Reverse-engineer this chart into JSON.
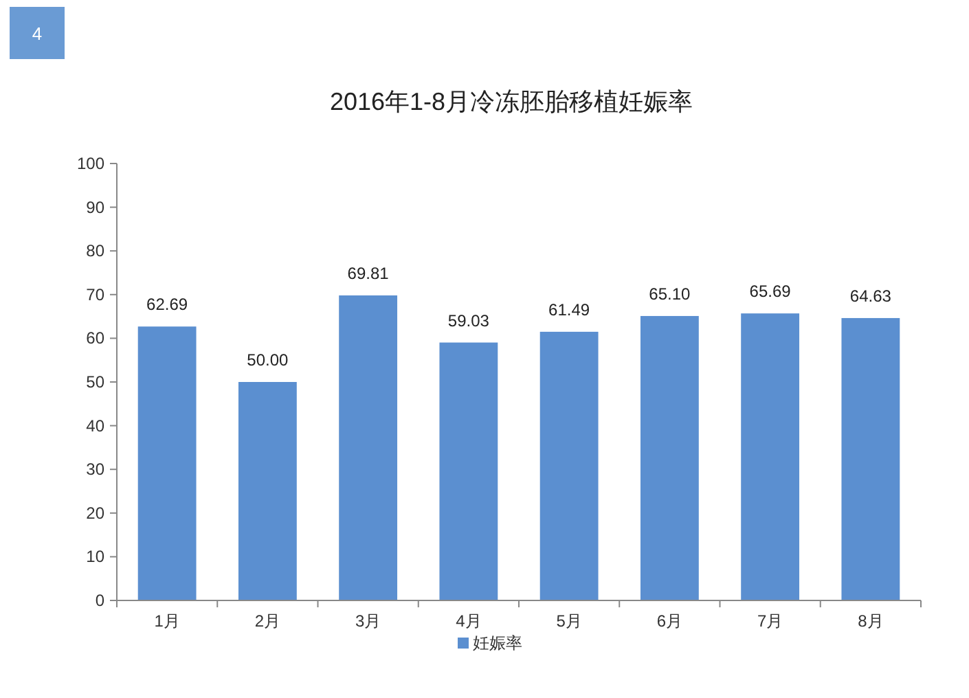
{
  "chart_data": {
    "type": "bar",
    "title": "2016年1-8月冷冻胚胎移植妊娠率",
    "categories": [
      "1月",
      "2月",
      "3月",
      "4月",
      "5月",
      "6月",
      "7月",
      "8月"
    ],
    "series": [
      {
        "name": "妊娠率",
        "color": "#5b8fd0",
        "values": [
          62.69,
          50.0,
          69.81,
          59.03,
          61.49,
          65.1,
          65.69,
          64.63
        ],
        "value_labels": [
          "62.69",
          "50.00",
          "69.81",
          "59.03",
          "61.49",
          "65.10",
          "65.69",
          "64.63"
        ]
      }
    ],
    "ylim": [
      0,
      100
    ],
    "yticks": [
      0,
      10,
      20,
      30,
      40,
      50,
      60,
      70,
      80,
      90,
      100
    ],
    "grid": false,
    "legend": "bottom",
    "annotations": [
      "4"
    ]
  }
}
